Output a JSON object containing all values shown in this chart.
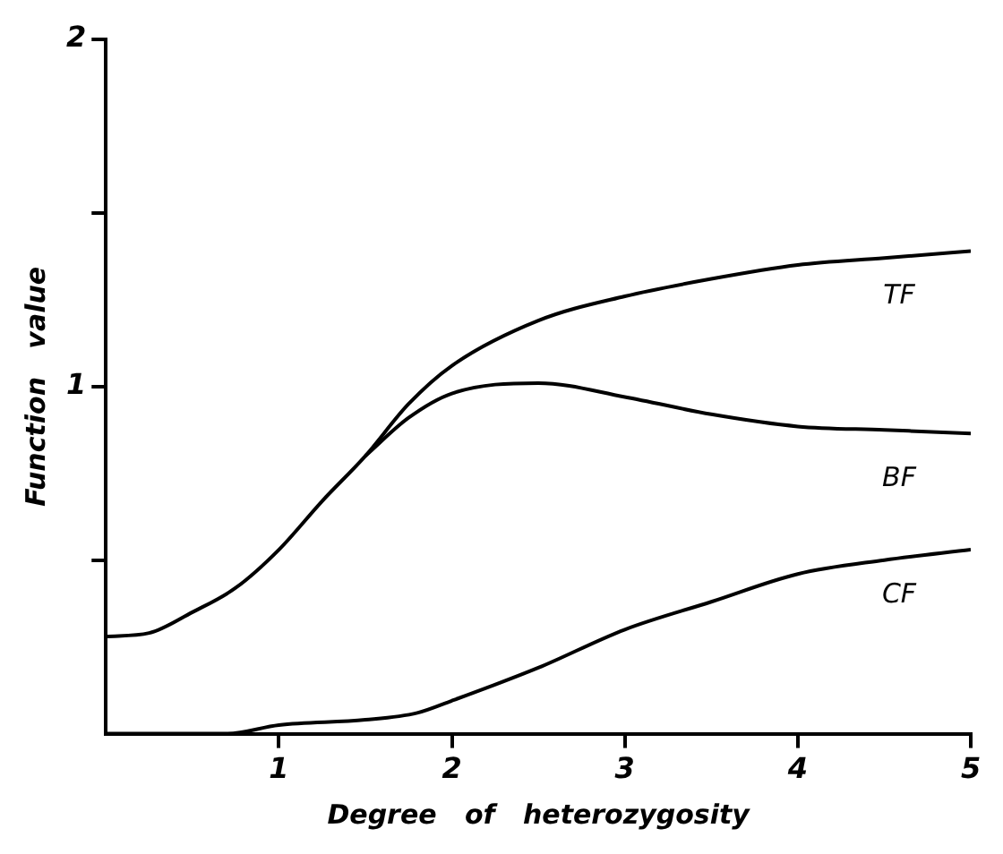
{
  "chart_data": {
    "type": "line",
    "xlabel": "Degree   of   heterozygosity",
    "ylabel": "Function   value",
    "xlim": [
      0,
      5
    ],
    "xticks": [
      1,
      2,
      3,
      4,
      5
    ],
    "ylim": [
      0,
      2
    ],
    "yticks": [
      {
        "value": 0.5,
        "label": null
      },
      1,
      {
        "value": 1.5,
        "label": null
      },
      2
    ],
    "grid": false,
    "legend": false,
    "series": [
      {
        "name": "TF",
        "color": "#000000",
        "x": [
          0,
          0.25,
          0.5,
          0.75,
          1,
          1.25,
          1.5,
          1.75,
          2,
          2.5,
          3,
          3.5,
          4,
          4.5,
          5
        ],
        "values": [
          0.28,
          0.29,
          0.35,
          0.42,
          0.53,
          0.67,
          0.8,
          0.95,
          1.06,
          1.19,
          1.26,
          1.31,
          1.35,
          1.37,
          1.39
        ]
      },
      {
        "name": "BF",
        "color": "#000000",
        "x": [
          1.5,
          1.75,
          2,
          2.5,
          3,
          3.5,
          4,
          4.5,
          5
        ],
        "values": [
          0.8,
          0.91,
          0.98,
          1.01,
          0.97,
          0.92,
          0.885,
          0.875,
          0.865
        ]
      },
      {
        "name": "CF",
        "color": "#000000",
        "x": [
          0,
          0.7,
          1,
          1.5,
          1.8,
          2,
          2.5,
          3,
          3.5,
          4,
          4.5,
          5
        ],
        "values": [
          0,
          0,
          0.025,
          0.04,
          0.06,
          0.095,
          0.19,
          0.3,
          0.38,
          0.46,
          0.5,
          0.53
        ]
      }
    ]
  }
}
